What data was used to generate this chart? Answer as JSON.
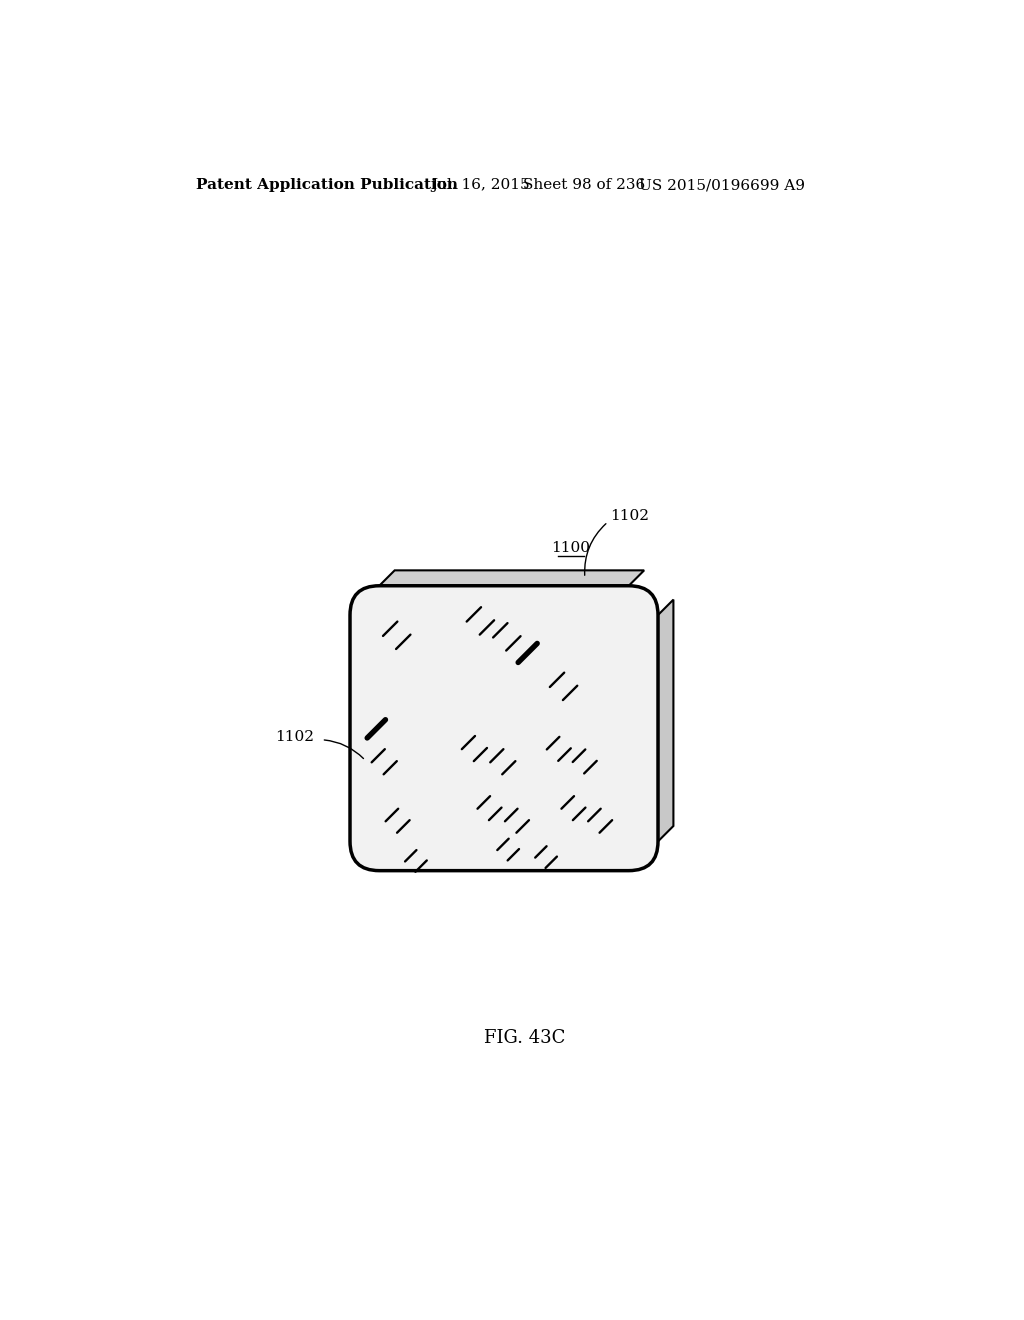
{
  "background_color": "#ffffff",
  "header_text": "Patent Application Publication",
  "header_date": "Jul. 16, 2015",
  "header_sheet": "Sheet 98 of 236",
  "header_patent": "US 2015/0196699 A9",
  "label_1100": "1100",
  "label_1102_top": "1102",
  "label_1102_bottom": "1102",
  "fig_label": "FIG. 43C",
  "text_color": "#000000",
  "line_color": "#000000",
  "header_fontsize": 11,
  "label_fontsize": 11,
  "fig_label_fontsize": 13
}
